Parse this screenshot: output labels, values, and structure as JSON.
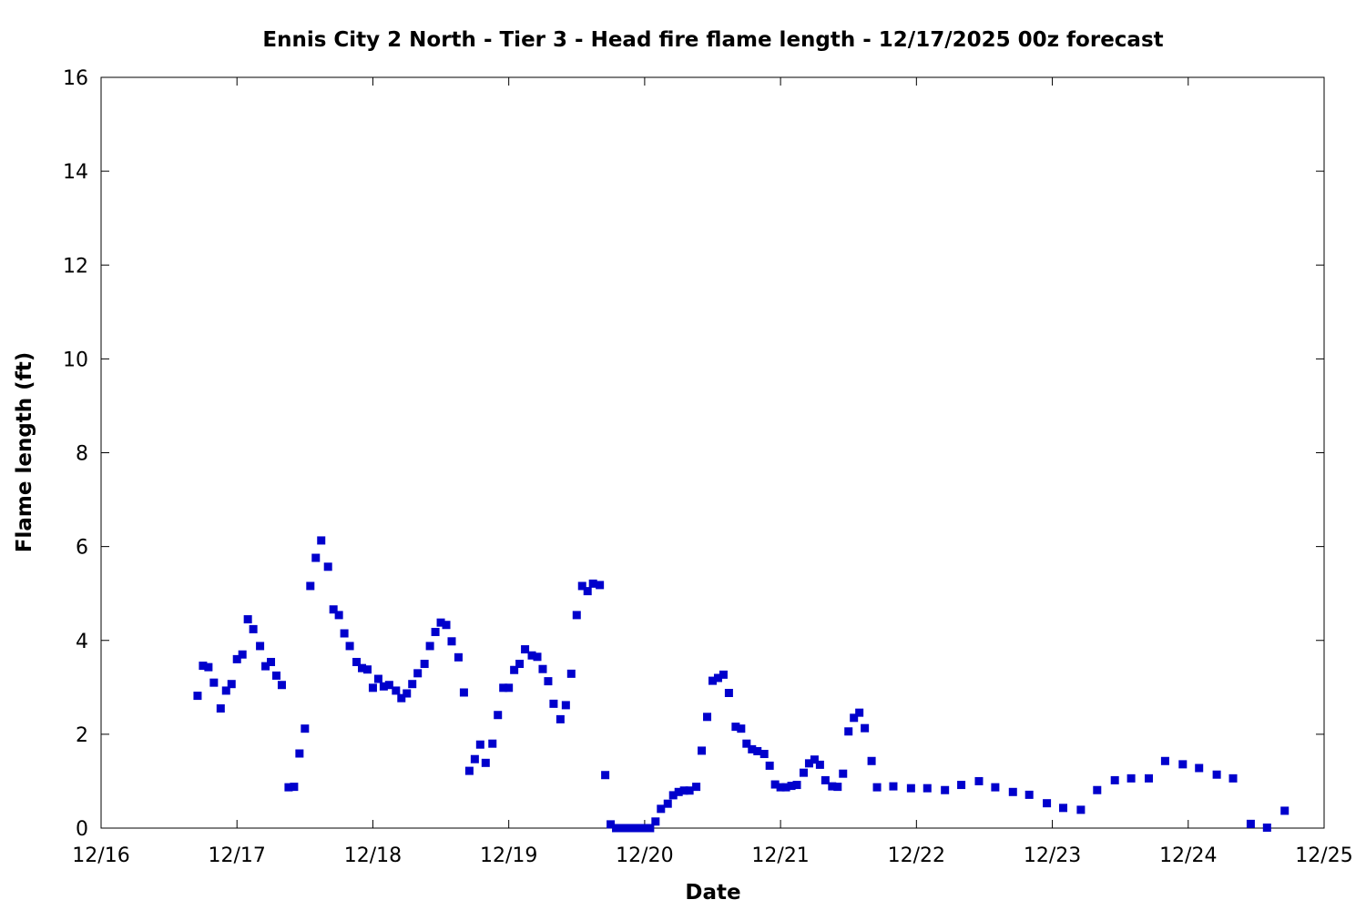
{
  "chart_data": {
    "type": "scatter",
    "title": "Ennis City 2 North - Tier 3 - Head fire flame length - 12/17/2025 00z forecast",
    "xlabel": "Date",
    "ylabel": "Flame length (ft)",
    "xlim": [
      "2025-12-16",
      "2025-12-25"
    ],
    "ylim": [
      0,
      16
    ],
    "x_ticks": [
      "12/16",
      "12/17",
      "12/18",
      "12/19",
      "12/20",
      "12/21",
      "12/22",
      "12/23",
      "12/24",
      "12/25"
    ],
    "y_ticks": [
      "0",
      "2",
      "4",
      "6",
      "8",
      "10",
      "12",
      "14",
      "16"
    ],
    "grid": false,
    "marker": "square",
    "color": "#0000cc",
    "x_unit": "days after 2025-12-16 00:00",
    "points": [
      [
        0.71,
        2.82
      ],
      [
        0.75,
        3.46
      ],
      [
        0.79,
        3.43
      ],
      [
        0.83,
        3.1
      ],
      [
        0.88,
        2.55
      ],
      [
        0.92,
        2.93
      ],
      [
        0.96,
        3.07
      ],
      [
        1.0,
        3.6
      ],
      [
        1.04,
        3.7
      ],
      [
        1.08,
        4.45
      ],
      [
        1.12,
        4.24
      ],
      [
        1.17,
        3.88
      ],
      [
        1.21,
        3.45
      ],
      [
        1.25,
        3.54
      ],
      [
        1.29,
        3.25
      ],
      [
        1.33,
        3.05
      ],
      [
        1.38,
        0.87
      ],
      [
        1.42,
        0.88
      ],
      [
        1.46,
        1.59
      ],
      [
        1.5,
        2.12
      ],
      [
        1.54,
        5.16
      ],
      [
        1.58,
        5.76
      ],
      [
        1.62,
        6.13
      ],
      [
        1.67,
        5.57
      ],
      [
        1.71,
        4.66
      ],
      [
        1.75,
        4.54
      ],
      [
        1.79,
        4.15
      ],
      [
        1.83,
        3.88
      ],
      [
        1.88,
        3.54
      ],
      [
        1.92,
        3.41
      ],
      [
        1.96,
        3.38
      ],
      [
        2.0,
        2.99
      ],
      [
        2.04,
        3.18
      ],
      [
        2.08,
        3.02
      ],
      [
        2.12,
        3.05
      ],
      [
        2.17,
        2.93
      ],
      [
        2.21,
        2.77
      ],
      [
        2.25,
        2.87
      ],
      [
        2.29,
        3.07
      ],
      [
        2.33,
        3.3
      ],
      [
        2.38,
        3.5
      ],
      [
        2.42,
        3.88
      ],
      [
        2.46,
        4.18
      ],
      [
        2.5,
        4.38
      ],
      [
        2.54,
        4.33
      ],
      [
        2.58,
        3.98
      ],
      [
        2.63,
        3.64
      ],
      [
        2.67,
        2.89
      ],
      [
        2.71,
        1.22
      ],
      [
        2.75,
        1.47
      ],
      [
        2.79,
        1.78
      ],
      [
        2.83,
        1.39
      ],
      [
        2.88,
        1.8
      ],
      [
        2.92,
        2.41
      ],
      [
        2.96,
        2.99
      ],
      [
        3.0,
        2.99
      ],
      [
        3.04,
        3.37
      ],
      [
        3.08,
        3.5
      ],
      [
        3.12,
        3.81
      ],
      [
        3.17,
        3.68
      ],
      [
        3.21,
        3.65
      ],
      [
        3.25,
        3.39
      ],
      [
        3.29,
        3.13
      ],
      [
        3.33,
        2.65
      ],
      [
        3.38,
        2.32
      ],
      [
        3.42,
        2.62
      ],
      [
        3.46,
        3.29
      ],
      [
        3.5,
        4.54
      ],
      [
        3.54,
        5.16
      ],
      [
        3.58,
        5.05
      ],
      [
        3.62,
        5.21
      ],
      [
        3.67,
        5.18
      ],
      [
        3.71,
        1.13
      ],
      [
        3.75,
        0.08
      ],
      [
        3.79,
        0.0
      ],
      [
        3.83,
        0.0
      ],
      [
        3.88,
        0.0
      ],
      [
        3.92,
        0.0
      ],
      [
        3.96,
        0.0
      ],
      [
        4.0,
        0.0
      ],
      [
        4.04,
        0.0
      ],
      [
        4.08,
        0.14
      ],
      [
        4.12,
        0.41
      ],
      [
        4.17,
        0.52
      ],
      [
        4.21,
        0.7
      ],
      [
        4.25,
        0.77
      ],
      [
        4.29,
        0.8
      ],
      [
        4.33,
        0.8
      ],
      [
        4.38,
        0.88
      ],
      [
        4.42,
        1.65
      ],
      [
        4.46,
        2.37
      ],
      [
        4.5,
        3.14
      ],
      [
        4.54,
        3.2
      ],
      [
        4.58,
        3.27
      ],
      [
        4.62,
        2.88
      ],
      [
        4.67,
        2.16
      ],
      [
        4.71,
        2.12
      ],
      [
        4.75,
        1.8
      ],
      [
        4.79,
        1.68
      ],
      [
        4.83,
        1.64
      ],
      [
        4.88,
        1.58
      ],
      [
        4.92,
        1.33
      ],
      [
        4.96,
        0.93
      ],
      [
        5.0,
        0.87
      ],
      [
        5.04,
        0.87
      ],
      [
        5.08,
        0.9
      ],
      [
        5.12,
        0.92
      ],
      [
        5.17,
        1.18
      ],
      [
        5.21,
        1.38
      ],
      [
        5.25,
        1.46
      ],
      [
        5.29,
        1.35
      ],
      [
        5.33,
        1.02
      ],
      [
        5.38,
        0.89
      ],
      [
        5.42,
        0.88
      ],
      [
        5.46,
        1.16
      ],
      [
        5.5,
        2.06
      ],
      [
        5.54,
        2.35
      ],
      [
        5.58,
        2.46
      ],
      [
        5.62,
        2.13
      ],
      [
        5.67,
        1.43
      ],
      [
        5.71,
        0.87
      ],
      [
        5.83,
        0.89
      ],
      [
        5.96,
        0.85
      ],
      [
        6.08,
        0.85
      ],
      [
        6.21,
        0.81
      ],
      [
        6.33,
        0.92
      ],
      [
        6.46,
        1.0
      ],
      [
        6.58,
        0.87
      ],
      [
        6.71,
        0.77
      ],
      [
        6.83,
        0.71
      ],
      [
        6.96,
        0.53
      ],
      [
        7.08,
        0.43
      ],
      [
        7.21,
        0.39
      ],
      [
        7.33,
        0.81
      ],
      [
        7.46,
        1.02
      ],
      [
        7.58,
        1.06
      ],
      [
        7.71,
        1.06
      ],
      [
        7.83,
        1.43
      ],
      [
        7.96,
        1.36
      ],
      [
        8.08,
        1.28
      ],
      [
        8.21,
        1.14
      ],
      [
        8.33,
        1.06
      ],
      [
        8.46,
        0.09
      ],
      [
        8.58,
        0.01
      ],
      [
        8.71,
        0.37
      ]
    ]
  }
}
